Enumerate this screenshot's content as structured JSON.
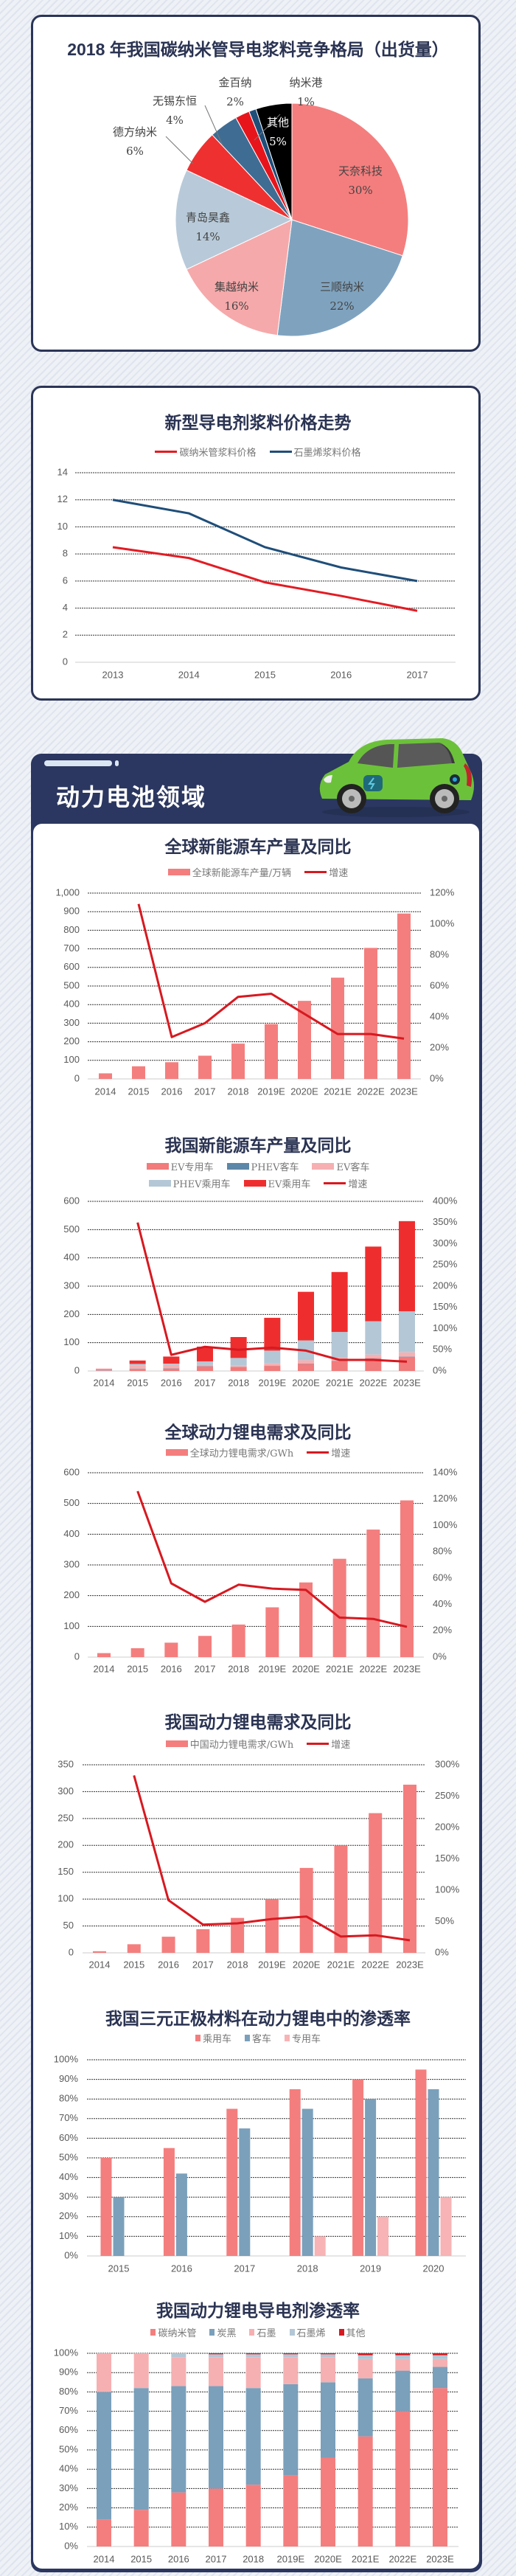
{
  "section": {
    "title": "动力电池领域"
  },
  "colors": {
    "border": "#2b3556",
    "title": "#2a3352",
    "bar": "#f47e7e",
    "growth_line": "#d71920",
    "section_bg": "#2b3760"
  },
  "chart_data": [
    {
      "id": "pie",
      "type": "pie",
      "title": "2018 年我国碳纳米管导电浆料竞争格局（出货量）",
      "slices": [
        {
          "label": "天奈科技",
          "value": 30,
          "display": "30%",
          "color": "#f47e7e"
        },
        {
          "label": "三顺纳米",
          "value": 22,
          "display": "22%",
          "color": "#7fa3bf"
        },
        {
          "label": "集越纳米",
          "value": 16,
          "display": "16%",
          "color": "#f6a9aa"
        },
        {
          "label": "青岛昊鑫",
          "value": 14,
          "display": "14%",
          "color": "#b8cad9"
        },
        {
          "label": "德方纳米",
          "value": 6,
          "display": "6%",
          "color": "#ef3030"
        },
        {
          "label": "无锡东恒",
          "value": 4,
          "display": "4%",
          "color": "#3f6c93"
        },
        {
          "label": "金百纳",
          "value": 2,
          "display": "2%",
          "color": "#e8141c"
        },
        {
          "label": "纳米港",
          "value": 1,
          "display": "1%",
          "color": "#1f4e79"
        },
        {
          "label": "其他",
          "value": 5,
          "display": "5%",
          "color": "#000000"
        }
      ]
    },
    {
      "id": "price",
      "type": "line",
      "title": "新型导电剂浆料价格走势",
      "categories": [
        "2013",
        "2014",
        "2015",
        "2016",
        "2017"
      ],
      "ylim": [
        0,
        14
      ],
      "yticks": [
        0,
        2,
        4,
        6,
        8,
        10,
        12,
        14
      ],
      "grid": true,
      "legend": "top",
      "series": [
        {
          "name": "碳纳米管浆料价格",
          "values": [
            8.5,
            7.7,
            5.9,
            4.9,
            3.8
          ],
          "color": "#e31b23"
        },
        {
          "name": "石墨烯浆料价格",
          "values": [
            12,
            11,
            8.5,
            7,
            6
          ],
          "color": "#1f4e79"
        }
      ]
    },
    {
      "id": "global_nev",
      "type": "bar",
      "title": "全球新能源车产量及同比",
      "categories": [
        "2014",
        "2015",
        "2016",
        "2017",
        "2018",
        "2019E",
        "2020E",
        "2021E",
        "2022E",
        "2023E"
      ],
      "series": [
        {
          "name": "全球新能源车产量/万辆",
          "kind": "bar",
          "values": [
            30,
            68,
            90,
            125,
            190,
            295,
            420,
            545,
            705,
            890
          ],
          "color": "#f47e7e"
        },
        {
          "name": "增速",
          "kind": "line",
          "axis": "right",
          "values": [
            null,
            113,
            27,
            36,
            53,
            55,
            42,
            29,
            29,
            26
          ],
          "color": "#d71920"
        }
      ],
      "y_left": {
        "ticks": [
          0,
          100,
          200,
          300,
          400,
          500,
          600,
          700,
          800,
          900,
          1000
        ],
        "labels": [
          "0",
          "100",
          "200",
          "300",
          "400",
          "500",
          "600",
          "700",
          "800",
          "900",
          "1,000"
        ]
      },
      "y_right": {
        "ticks": [
          0,
          20,
          40,
          60,
          80,
          100,
          120
        ],
        "labels": [
          "0%",
          "20%",
          "40%",
          "60%",
          "80%",
          "100%",
          "120%"
        ]
      },
      "grid": true,
      "legend": "top"
    },
    {
      "id": "china_nev",
      "type": "bar",
      "stacked": true,
      "title": "我国新能源车产量及同比",
      "categories": [
        "2014",
        "2015",
        "2016",
        "2017",
        "2018",
        "2019E",
        "2020E",
        "2021E",
        "2022E",
        "2023E"
      ],
      "series": [
        {
          "name": "EV专用车",
          "kind": "bar",
          "values": [
            2,
            5,
            8,
            16,
            13,
            18,
            25,
            35,
            45,
            50
          ],
          "color": "#f27b7b"
        },
        {
          "name": "PHEV客车",
          "kind": "bar",
          "values": [
            1,
            2,
            1,
            1,
            1,
            1,
            1,
            1,
            1,
            1
          ],
          "color": "#5d87a8"
        },
        {
          "name": "EV客车",
          "kind": "bar",
          "values": [
            1,
            12,
            13,
            5,
            6,
            8,
            12,
            12,
            12,
            15
          ],
          "color": "#f6b0b2"
        },
        {
          "name": "PHEV乘用车",
          "kind": "bar",
          "values": [
            1,
            6,
            4,
            12,
            26,
            45,
            70,
            90,
            118,
            145
          ],
          "color": "#b3c7d6"
        },
        {
          "name": "EV乘用车",
          "kind": "bar",
          "values": [
            2,
            12,
            25,
            52,
            74,
            116,
            172,
            212,
            264,
            319
          ],
          "color": "#ee2e2e"
        },
        {
          "name": "增速",
          "kind": "line",
          "axis": "right",
          "values": [
            null,
            350,
            38,
            57,
            50,
            55,
            48,
            26,
            26,
            22
          ],
          "color": "#d71920"
        }
      ],
      "y_left": {
        "ticks": [
          0,
          100,
          200,
          300,
          400,
          500,
          600
        ],
        "labels": [
          "0",
          "100",
          "200",
          "300",
          "400",
          "500",
          "600"
        ]
      },
      "y_right": {
        "ticks": [
          0,
          50,
          100,
          150,
          200,
          250,
          300,
          350,
          400
        ],
        "labels": [
          "0%",
          "50%",
          "100%",
          "150%",
          "200%",
          "250%",
          "300%",
          "350%",
          "400%"
        ]
      },
      "grid": true,
      "legend": "top"
    },
    {
      "id": "global_li",
      "type": "bar",
      "title": "全球动力锂电需求及同比",
      "categories": [
        "2014",
        "2015",
        "2016",
        "2017",
        "2018",
        "2019E",
        "2020E",
        "2021E",
        "2022E",
        "2023E"
      ],
      "series": [
        {
          "name": "全球动力锂电需求/GWh",
          "kind": "bar",
          "values": [
            13,
            29,
            47,
            69,
            106,
            162,
            243,
            320,
            415,
            510
          ],
          "color": "#f47e7e"
        },
        {
          "name": "增速",
          "kind": "line",
          "axis": "right",
          "values": [
            null,
            126,
            56,
            42,
            55,
            52,
            51,
            30,
            29,
            23
          ],
          "color": "#d71920"
        }
      ],
      "y_left": {
        "ticks": [
          0,
          100,
          200,
          300,
          400,
          500,
          600
        ],
        "labels": [
          "0",
          "100",
          "200",
          "300",
          "400",
          "500",
          "600"
        ]
      },
      "y_right": {
        "ticks": [
          0,
          20,
          40,
          60,
          80,
          100,
          120,
          140
        ],
        "labels": [
          "0%",
          "20%",
          "40%",
          "60%",
          "80%",
          "100%",
          "120%",
          "140%"
        ]
      },
      "grid": true,
      "legend": "top"
    },
    {
      "id": "china_li",
      "type": "bar",
      "title": "我国动力锂电需求及同比",
      "categories": [
        "2014",
        "2015",
        "2016",
        "2017",
        "2018",
        "2019E",
        "2020E",
        "2021E",
        "2022E",
        "2023E"
      ],
      "series": [
        {
          "name": "中国动力锂电需求/GWh",
          "kind": "bar",
          "values": [
            3,
            16,
            30,
            44,
            65,
            100,
            158,
            200,
            260,
            313
          ],
          "color": "#f47e7e"
        },
        {
          "name": "增速",
          "kind": "line",
          "axis": "right",
          "values": [
            null,
            283,
            84,
            45,
            47,
            54,
            58,
            26,
            28,
            20
          ],
          "color": "#d71920"
        }
      ],
      "y_left": {
        "ticks": [
          0,
          50,
          100,
          150,
          200,
          250,
          300,
          350
        ],
        "labels": [
          "0",
          "50",
          "100",
          "150",
          "200",
          "250",
          "300",
          "350"
        ]
      },
      "y_right": {
        "ticks": [
          0,
          50,
          100,
          150,
          200,
          250,
          300
        ],
        "labels": [
          "0%",
          "50%",
          "100%",
          "150%",
          "200%",
          "250%",
          "300%"
        ]
      },
      "grid": true,
      "legend": "top"
    },
    {
      "id": "ternary",
      "type": "bar",
      "grouped": true,
      "title": "我国三元正极材料在动力锂电中的渗透率",
      "categories": [
        "2015",
        "2016",
        "2017",
        "2018",
        "2019",
        "2020"
      ],
      "series": [
        {
          "name": "乘用车",
          "values": [
            50,
            55,
            75,
            85,
            90,
            95
          ],
          "color": "#f47e7e"
        },
        {
          "name": "客车",
          "values": [
            30,
            42,
            65,
            75,
            80,
            85
          ],
          "color": "#7aa0bb"
        },
        {
          "name": "专用车",
          "values": [
            0,
            0,
            0,
            10,
            20,
            30
          ],
          "color": "#f7b3b5"
        }
      ],
      "y_left": {
        "ticks": [
          0,
          10,
          20,
          30,
          40,
          50,
          60,
          70,
          80,
          90,
          100
        ],
        "labels": [
          "0%",
          "10%",
          "20%",
          "30%",
          "40%",
          "50%",
          "60%",
          "70%",
          "80%",
          "90%",
          "100%"
        ]
      },
      "grid": true,
      "legend": "top"
    },
    {
      "id": "conductive",
      "type": "bar",
      "stacked": true,
      "title": "我国动力锂电导电剂渗透率",
      "categories": [
        "2014",
        "2015",
        "2016",
        "2017",
        "2018",
        "2019E",
        "2020E",
        "2021E",
        "2022E",
        "2023E"
      ],
      "series": [
        {
          "name": "碳纳米管",
          "values": [
            14,
            19,
            28,
            30,
            32,
            37,
            46,
            57,
            70,
            82
          ],
          "color": "#f47e7e"
        },
        {
          "name": "炭黑",
          "values": [
            66,
            63,
            55,
            53,
            50,
            47,
            39,
            30,
            21,
            11
          ],
          "color": "#7aa0bb"
        },
        {
          "name": "石墨",
          "values": [
            20,
            18,
            15,
            15,
            16,
            14,
            13,
            10,
            6,
            4
          ],
          "color": "#f6b0b2"
        },
        {
          "name": "石墨烯",
          "values": [
            0,
            0,
            2,
            1.5,
            1.5,
            1.5,
            1.5,
            2,
            2,
            2
          ],
          "color": "#b3c7d6"
        },
        {
          "name": "其他",
          "values": [
            0,
            0,
            0,
            0.5,
            0.5,
            0.5,
            0.5,
            1,
            1,
            1
          ],
          "color": "#d71920"
        }
      ],
      "y_left": {
        "ticks": [
          0,
          10,
          20,
          30,
          40,
          50,
          60,
          70,
          80,
          90,
          100
        ],
        "labels": [
          "0%",
          "10%",
          "20%",
          "30%",
          "40%",
          "50%",
          "60%",
          "70%",
          "80%",
          "90%",
          "100%"
        ]
      },
      "grid": true,
      "legend": "top"
    }
  ]
}
